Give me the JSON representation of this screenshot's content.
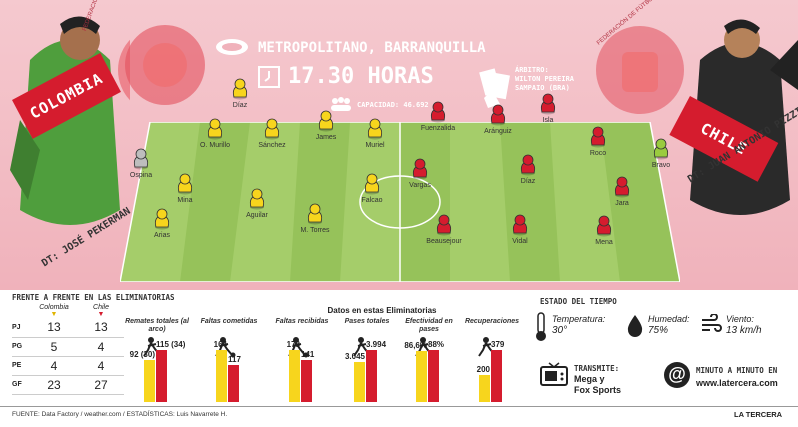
{
  "header": {
    "stadium": "METROPOLITANO, BARRANQUILLA",
    "time": "17.30 HORAS",
    "capacity": "CAPACIDAD: 46.692",
    "referee_label": "ÁRBITRO:",
    "referee_name": "WILTON PEREIRA",
    "referee_origin": "SAMPAIO (BRA)"
  },
  "teams": {
    "home": {
      "name": "COLOMBIA",
      "coach": "DT: JOSÉ PEKERMAN",
      "color": "#f7d51d"
    },
    "away": {
      "name": "CHILE",
      "coach": "DT: JUAN ANTONIO PIZZI",
      "color": "#d51c2e"
    },
    "home_crest_text": "FEDERACIÓN COLOMBIANA DE FÚTBOL",
    "away_crest_text": "FEDERACIÓN DE FÚTBOL DE CHILE"
  },
  "lineup": {
    "colombia": [
      {
        "name": "Ospina",
        "pos": "gk"
      },
      {
        "name": "Arias"
      },
      {
        "name": "Mina"
      },
      {
        "name": "O. Murillo"
      },
      {
        "name": "Díaz"
      },
      {
        "name": "Aguilar"
      },
      {
        "name": "Sánchez"
      },
      {
        "name": "James"
      },
      {
        "name": "M. Torres"
      },
      {
        "name": "Muriel"
      },
      {
        "name": "Falcao"
      }
    ],
    "chile": [
      {
        "name": "Fuenzalida"
      },
      {
        "name": "Aránguiz"
      },
      {
        "name": "Isla"
      },
      {
        "name": "Vargas"
      },
      {
        "name": "Díaz"
      },
      {
        "name": "Roco"
      },
      {
        "name": "Beausejour"
      },
      {
        "name": "Vidal"
      },
      {
        "name": "Jara"
      },
      {
        "name": "Mena"
      },
      {
        "name": "Bravo",
        "pos": "gk"
      }
    ]
  },
  "head_to_head": {
    "title": "FRENTE A FRENTE EN LAS ELIMINATORIAS",
    "col_home": "Colombia",
    "col_away": "Chile",
    "rows": [
      {
        "key": "PJ",
        "home": "13",
        "away": "13"
      },
      {
        "key": "PG",
        "home": "5",
        "away": "4"
      },
      {
        "key": "PE",
        "home": "4",
        "away": "4"
      },
      {
        "key": "GF",
        "home": "23",
        "away": "27"
      }
    ]
  },
  "stats": {
    "title": "Datos en estas Eliminatorias",
    "items": [
      {
        "label": "Remates totales (al arco)",
        "icon": "goalkeeper-save-icon",
        "home_label": "92 (30)",
        "away_label": "115 (34)",
        "home": 92,
        "away": 115
      },
      {
        "label": "Faltas cometidas",
        "icon": "tackle-icon",
        "home_label": "164",
        "away_label": "117",
        "home": 164,
        "away": 117
      },
      {
        "label": "Faltas recibidas",
        "icon": "foul-icon",
        "home_label": "173",
        "away_label": "141",
        "home": 173,
        "away": 141
      },
      {
        "label": "Pases totales",
        "icon": "pass-icon",
        "home_label": "3.045",
        "away_label": "3.994",
        "home": 3045,
        "away": 3994
      },
      {
        "label": "Efectividad en pases",
        "icon": "passing-players-icon",
        "home_label": "86,6%",
        "away_label": "88%",
        "home": 86.6,
        "away": 88
      },
      {
        "label": "Recuperaciones",
        "icon": "recovery-icon",
        "home_label": "200",
        "away_label": "379",
        "home": 200,
        "away": 379
      }
    ]
  },
  "weather": {
    "title": "ESTADO DEL TIEMPO",
    "temp_label": "Temperatura:",
    "temp_value": "30°",
    "humidity_label": "Humedad:",
    "humidity_value": "75%",
    "wind_label": "Viento:",
    "wind_value": "13 km/h"
  },
  "broadcast": {
    "title": "TRANSMITE:",
    "line1": "Mega y",
    "line2": "Fox Sports",
    "live_title": "MINUTO A MINUTO EN",
    "live_url": "www.latercera.com"
  },
  "footer": {
    "source": "FUENTE: Data Factory / weather.com / ESTADÍSTICAS: Luis Navarrete H.",
    "brand": "LA TERCERA"
  }
}
